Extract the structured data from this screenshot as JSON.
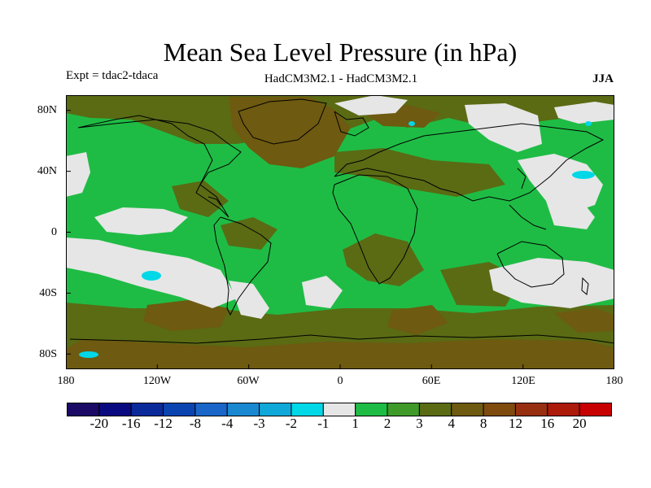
{
  "title": "Mean Sea Level Pressure (in hPa)",
  "header": {
    "expt": "Expt = tdac2-tdaca",
    "models": "HadCM3M2.1 - HadCM3M2.1",
    "season": "JJA"
  },
  "axes": {
    "lat_ticks": [
      "80N",
      "40N",
      "0",
      "40S",
      "80S"
    ],
    "lon_ticks": [
      "180",
      "120W",
      "60W",
      "0",
      "60E",
      "120E",
      "180"
    ]
  },
  "colorbar": {
    "colors": [
      "#1a0a66",
      "#0a0a80",
      "#0a2a9a",
      "#0a44b0",
      "#1a66c8",
      "#1a88d0",
      "#10a8d8",
      "#00d8e8",
      "#e6e6e6",
      "#1fbc45",
      "#3f9a2a",
      "#5a6b14",
      "#6e5a10",
      "#7e4a0e",
      "#963010",
      "#ac1a0a",
      "#c80000"
    ],
    "labels": [
      "-20",
      "-16",
      "-12",
      "-8",
      "-4",
      "-3",
      "-2",
      "-1",
      "1",
      "2",
      "3",
      "4",
      "8",
      "12",
      "16",
      "20"
    ]
  },
  "field_colors": {
    "green": "#1fbc45",
    "olive": "#5a6b14",
    "brown": "#6e5a10",
    "grey": "#e6e6e6",
    "cyan": "#00d8e8"
  }
}
